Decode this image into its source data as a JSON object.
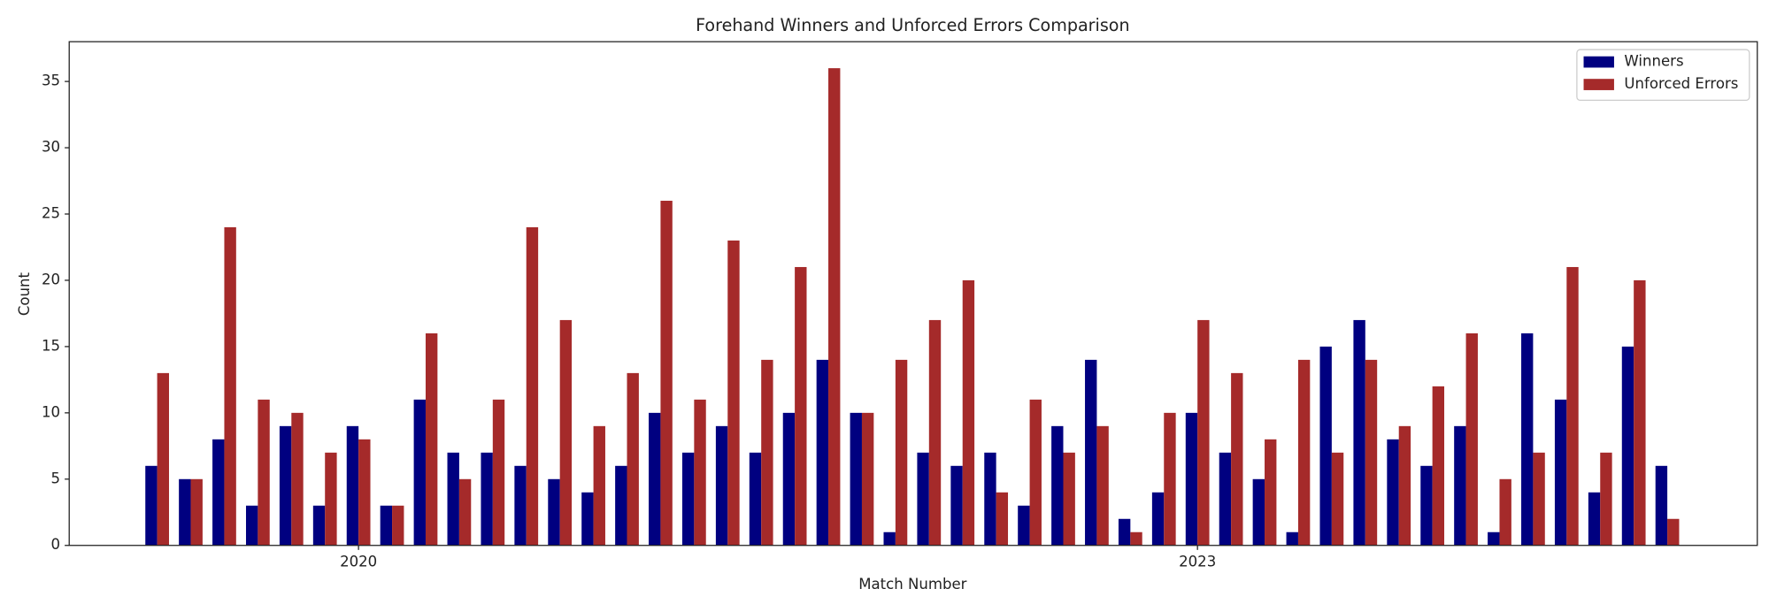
{
  "chart_data": {
    "type": "bar",
    "title": "Forehand Winners and Unforced Errors Comparison",
    "x_label": "Match Number",
    "y_label": "Count",
    "categories": [
      null,
      null,
      null,
      null,
      null,
      null,
      "2020",
      null,
      null,
      null,
      null,
      null,
      null,
      null,
      null,
      null,
      null,
      null,
      null,
      null,
      null,
      null,
      null,
      null,
      null,
      null,
      null,
      null,
      null,
      null,
      null,
      "2023",
      null,
      null,
      null,
      null,
      null,
      null,
      null,
      null,
      null,
      null,
      null,
      null,
      null,
      null
    ],
    "series": [
      {
        "name": "Winners",
        "color": "#000080",
        "values": [
          6,
          5,
          8,
          3,
          9,
          3,
          9,
          3,
          11,
          7,
          7,
          6,
          5,
          4,
          6,
          10,
          7,
          9,
          7,
          10,
          14,
          10,
          1,
          7,
          6,
          7,
          3,
          9,
          14,
          2,
          4,
          10,
          7,
          5,
          1,
          15,
          17,
          8,
          6,
          9,
          1,
          16,
          11,
          4,
          15,
          6
        ]
      },
      {
        "name": "Unforced Errors",
        "color": "#a52a2a",
        "values": [
          13,
          5,
          24,
          11,
          10,
          7,
          8,
          3,
          16,
          5,
          11,
          24,
          17,
          9,
          13,
          26,
          11,
          23,
          14,
          21,
          36,
          10,
          14,
          17,
          20,
          4,
          11,
          7,
          9,
          1,
          10,
          17,
          13,
          8,
          14,
          7,
          14,
          9,
          12,
          16,
          5,
          7,
          21,
          7,
          20,
          2
        ]
      }
    ],
    "ylim": [
      0,
      38
    ],
    "yticks": [
      0,
      5,
      10,
      15,
      20,
      25,
      30,
      35
    ],
    "legend": "upper right"
  }
}
